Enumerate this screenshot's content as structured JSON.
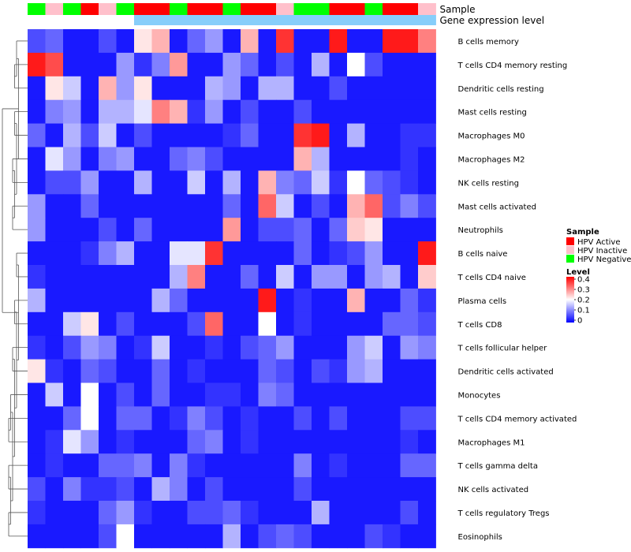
{
  "chart_data": {
    "type": "heatmap",
    "title": "",
    "annotation_rows": [
      {
        "label": "Sample"
      },
      {
        "label": "Gene expression level"
      }
    ],
    "sample_annotation": [
      "N",
      "I",
      "N",
      "A",
      "I",
      "N",
      "A",
      "A",
      "N",
      "A",
      "A",
      "N",
      "A",
      "A",
      "I",
      "N",
      "N",
      "A",
      "A",
      "N",
      "A",
      "A",
      "I"
    ],
    "expression_annotation_split": 6,
    "expression_annotation_colors": [
      "#ffffff",
      "#87cefa"
    ],
    "sample_colors": {
      "A": "#ff0000",
      "I": "#ffc0cb",
      "N": "#00ff00"
    },
    "rows": [
      "B cells memory",
      "T cells CD4 memory resting",
      "Dendritic cells resting",
      "Mast cells resting",
      "Macrophages M0",
      "Macrophages M2",
      "NK cells resting",
      "Mast cells activated",
      "Neutrophils",
      "B cells naive",
      "T cells CD4 naive",
      "Plasma cells",
      "T cells CD8",
      "T cells follicular helper",
      "Dendritic cells activated",
      "Monocytes",
      "T cells CD4 memory activated",
      "Macrophages M1",
      "T cells gamma delta",
      "NK cells activated",
      "T cells regulatory  Tregs",
      "Eosinophils"
    ],
    "values": [
      [
        0.06,
        0.08,
        0.02,
        0.02,
        0.06,
        0.02,
        0.22,
        0.26,
        0.02,
        0.08,
        0.12,
        0.02,
        0.26,
        0.02,
        0.36,
        0.02,
        0.02,
        0.38,
        0.02,
        0.02,
        0.38,
        0.38,
        0.3
      ],
      [
        0.38,
        0.34,
        0.02,
        0.02,
        0.02,
        0.12,
        0.04,
        0.1,
        0.28,
        0.02,
        0.02,
        0.12,
        0.08,
        0.02,
        0.06,
        0.02,
        0.14,
        0.02,
        0.2,
        0.06,
        0.02,
        0.02,
        0.02
      ],
      [
        0.02,
        0.22,
        0.16,
        0.02,
        0.26,
        0.12,
        0.22,
        0.02,
        0.02,
        0.02,
        0.14,
        0.12,
        0.02,
        0.14,
        0.14,
        0.02,
        0.02,
        0.06,
        0.02,
        0.02,
        0.02,
        0.02,
        0.02
      ],
      [
        0.02,
        0.1,
        0.12,
        0.02,
        0.14,
        0.14,
        0.18,
        0.3,
        0.26,
        0.04,
        0.12,
        0.02,
        0.06,
        0.02,
        0.02,
        0.06,
        0.02,
        0.02,
        0.02,
        0.02,
        0.02,
        0.02,
        0.02
      ],
      [
        0.08,
        0.02,
        0.14,
        0.06,
        0.16,
        0.02,
        0.06,
        0.02,
        0.02,
        0.02,
        0.02,
        0.04,
        0.08,
        0.02,
        0.02,
        0.36,
        0.38,
        0.02,
        0.14,
        0.02,
        0.02,
        0.04,
        0.04
      ],
      [
        0.02,
        0.18,
        0.12,
        0.02,
        0.1,
        0.12,
        0.02,
        0.02,
        0.08,
        0.1,
        0.06,
        0.02,
        0.02,
        0.02,
        0.02,
        0.26,
        0.14,
        0.02,
        0.02,
        0.02,
        0.02,
        0.04,
        0.02
      ],
      [
        0.02,
        0.06,
        0.06,
        0.12,
        0.02,
        0.02,
        0.14,
        0.02,
        0.02,
        0.16,
        0.02,
        0.14,
        0.02,
        0.26,
        0.1,
        0.08,
        0.16,
        0.04,
        0.2,
        0.08,
        0.06,
        0.04,
        0.02
      ],
      [
        0.12,
        0.02,
        0.02,
        0.08,
        0.02,
        0.02,
        0.02,
        0.02,
        0.02,
        0.02,
        0.02,
        0.08,
        0.02,
        0.32,
        0.16,
        0.02,
        0.06,
        0.02,
        0.26,
        0.32,
        0.06,
        0.1,
        0.06
      ],
      [
        0.12,
        0.02,
        0.02,
        0.02,
        0.06,
        0.02,
        0.08,
        0.02,
        0.02,
        0.02,
        0.02,
        0.28,
        0.02,
        0.06,
        0.06,
        0.08,
        0.02,
        0.08,
        0.24,
        0.22,
        0.02,
        0.02,
        0.02
      ],
      [
        0.02,
        0.02,
        0.02,
        0.04,
        0.1,
        0.14,
        0.02,
        0.02,
        0.18,
        0.18,
        0.36,
        0.02,
        0.02,
        0.02,
        0.02,
        0.08,
        0.02,
        0.04,
        0.06,
        0.12,
        0.02,
        0.02,
        0.38
      ],
      [
        0.04,
        0.02,
        0.02,
        0.02,
        0.02,
        0.02,
        0.02,
        0.02,
        0.14,
        0.3,
        0.02,
        0.02,
        0.08,
        0.02,
        0.16,
        0.02,
        0.12,
        0.12,
        0.02,
        0.12,
        0.14,
        0.02,
        0.24
      ],
      [
        0.14,
        0.02,
        0.02,
        0.02,
        0.02,
        0.02,
        0.02,
        0.14,
        0.08,
        0.02,
        0.02,
        0.02,
        0.02,
        0.38,
        0.02,
        0.04,
        0.02,
        0.02,
        0.26,
        0.02,
        0.02,
        0.08,
        0.04
      ],
      [
        0.02,
        0.02,
        0.16,
        0.22,
        0.02,
        0.06,
        0.02,
        0.02,
        0.02,
        0.06,
        0.32,
        0.02,
        0.02,
        0.2,
        0.02,
        0.04,
        0.02,
        0.02,
        0.02,
        0.02,
        0.08,
        0.08,
        0.06
      ],
      [
        0.04,
        0.02,
        0.06,
        0.12,
        0.1,
        0.02,
        0.04,
        0.16,
        0.02,
        0.02,
        0.04,
        0.02,
        0.06,
        0.08,
        0.12,
        0.02,
        0.02,
        0.02,
        0.12,
        0.16,
        0.02,
        0.12,
        0.1
      ],
      [
        0.22,
        0.04,
        0.02,
        0.08,
        0.06,
        0.02,
        0.02,
        0.08,
        0.02,
        0.04,
        0.02,
        0.02,
        0.02,
        0.08,
        0.06,
        0.02,
        0.06,
        0.04,
        0.12,
        0.14,
        0.02,
        0.02,
        0.02
      ],
      [
        0.02,
        0.16,
        0.02,
        0.2,
        0.02,
        0.06,
        0.02,
        0.08,
        0.02,
        0.02,
        0.04,
        0.04,
        0.02,
        0.1,
        0.08,
        0.02,
        0.02,
        0.02,
        0.02,
        0.02,
        0.02,
        0.02,
        0.02
      ],
      [
        0.02,
        0.02,
        0.08,
        0.2,
        0.02,
        0.08,
        0.08,
        0.02,
        0.04,
        0.1,
        0.06,
        0.02,
        0.04,
        0.02,
        0.02,
        0.06,
        0.02,
        0.06,
        0.02,
        0.02,
        0.02,
        0.06,
        0.06
      ],
      [
        0.02,
        0.04,
        0.18,
        0.12,
        0.02,
        0.04,
        0.02,
        0.02,
        0.02,
        0.08,
        0.1,
        0.02,
        0.04,
        0.02,
        0.02,
        0.02,
        0.02,
        0.02,
        0.02,
        0.02,
        0.02,
        0.04,
        0.02
      ],
      [
        0.02,
        0.04,
        0.02,
        0.02,
        0.08,
        0.08,
        0.1,
        0.02,
        0.1,
        0.04,
        0.02,
        0.02,
        0.02,
        0.02,
        0.02,
        0.1,
        0.02,
        0.04,
        0.02,
        0.02,
        0.02,
        0.08,
        0.08
      ],
      [
        0.06,
        0.02,
        0.1,
        0.04,
        0.04,
        0.06,
        0.02,
        0.14,
        0.1,
        0.02,
        0.06,
        0.02,
        0.02,
        0.02,
        0.02,
        0.06,
        0.02,
        0.02,
        0.02,
        0.02,
        0.02,
        0.02,
        0.02
      ],
      [
        0.04,
        0.02,
        0.02,
        0.02,
        0.08,
        0.12,
        0.04,
        0.02,
        0.02,
        0.06,
        0.06,
        0.08,
        0.04,
        0.02,
        0.02,
        0.02,
        0.14,
        0.02,
        0.02,
        0.02,
        0.02,
        0.06,
        0.02
      ],
      [
        0.02,
        0.02,
        0.02,
        0.02,
        0.06,
        0.2,
        0.02,
        0.02,
        0.02,
        0.02,
        0.02,
        0.14,
        0.02,
        0.06,
        0.08,
        0.06,
        0.02,
        0.02,
        0.02,
        0.06,
        0.04,
        0.02,
        0.02
      ]
    ],
    "color_scale": {
      "range": [
        0,
        0.4
      ],
      "stops": [
        {
          "value": 0,
          "color": "#0000ff"
        },
        {
          "value": 0.2,
          "color": "#ffffff"
        },
        {
          "value": 0.4,
          "color": "#ff0000"
        }
      ]
    },
    "legend": {
      "position": "right",
      "sample_title": "Sample",
      "sample_entries": [
        {
          "label": "HPV Active",
          "color": "#ff0000"
        },
        {
          "label": "HPV Inactive",
          "color": "#ffc0cb"
        },
        {
          "label": "HPV Negative",
          "color": "#00ff00"
        }
      ],
      "level_title": "Level",
      "level_ticks": [
        "0.4",
        "0.3",
        "0.2",
        "0.1",
        "0"
      ]
    }
  }
}
